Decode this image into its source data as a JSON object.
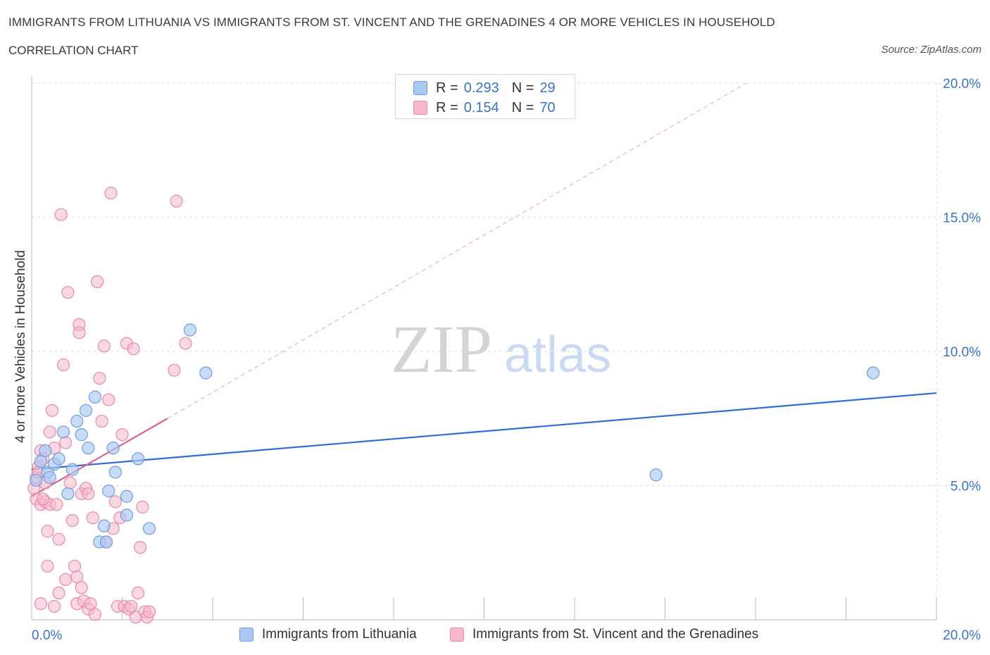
{
  "title": "IMMIGRANTS FROM LITHUANIA VS IMMIGRANTS FROM ST. VINCENT AND THE GRENADINES 4 OR MORE VEHICLES IN HOUSEHOLD",
  "subtitle": "CORRELATION CHART",
  "source": "Source: ZipAtlas.com",
  "watermark": {
    "zip": "ZIP",
    "atlas": "atlas"
  },
  "legend": {
    "r_label": "R =",
    "n_label": "N =",
    "rows": [
      {
        "r": "0.293",
        "n": "29"
      },
      {
        "r": "0.154",
        "n": "70"
      }
    ]
  },
  "colors": {
    "blue_fill": "#aac8f2",
    "blue_stroke": "#6d9ee0",
    "blue_line": "#2e6fd0",
    "pink_fill": "#f6b8cb",
    "pink_stroke": "#e98aa8",
    "pink_line": "#e0608e",
    "grid": "#dddddd",
    "axis_text": "#3a73c9"
  },
  "chart_data": {
    "type": "scatter",
    "title": "IMMIGRANTS FROM LITHUANIA VS IMMIGRANTS FROM ST. VINCENT AND THE GRENADINES 4 OR MORE VEHICLES IN HOUSEHOLD",
    "xlabel": "",
    "ylabel": "4 or more Vehicles in Household",
    "xlim": [
      0,
      20
    ],
    "ylim": [
      0,
      20
    ],
    "x_ticks": [
      "0.0%",
      "20.0%"
    ],
    "y_ticks": [
      {
        "value": 5,
        "label": "5.0%"
      },
      {
        "value": 10,
        "label": "10.0%"
      },
      {
        "value": 15,
        "label": "15.0%"
      },
      {
        "value": 20,
        "label": "20.0%"
      }
    ],
    "grid": true,
    "legend_position": "top-center",
    "series": [
      {
        "name": "Immigrants from Lithuania",
        "color": "blue",
        "points": [
          [
            0.1,
            5.2
          ],
          [
            0.2,
            5.9
          ],
          [
            0.3,
            6.3
          ],
          [
            0.35,
            5.5
          ],
          [
            0.4,
            5.3
          ],
          [
            0.5,
            5.8
          ],
          [
            0.6,
            6.0
          ],
          [
            0.7,
            7.0
          ],
          [
            0.8,
            4.7
          ],
          [
            0.9,
            5.6
          ],
          [
            1.0,
            7.4
          ],
          [
            1.1,
            6.9
          ],
          [
            1.2,
            7.8
          ],
          [
            1.25,
            6.4
          ],
          [
            1.4,
            8.3
          ],
          [
            1.5,
            2.9
          ],
          [
            1.6,
            3.5
          ],
          [
            1.65,
            2.9
          ],
          [
            1.7,
            4.8
          ],
          [
            1.8,
            6.4
          ],
          [
            1.85,
            5.5
          ],
          [
            2.1,
            4.6
          ],
          [
            2.1,
            3.9
          ],
          [
            2.35,
            6.0
          ],
          [
            2.6,
            3.4
          ],
          [
            3.5,
            10.8
          ],
          [
            3.85,
            9.2
          ],
          [
            13.8,
            5.4
          ],
          [
            18.6,
            9.2
          ]
        ],
        "trend": {
          "x0": 0.0,
          "y0": 5.6,
          "x1": 20.0,
          "y1": 8.45
        }
      },
      {
        "name": "Immigrants from St. Vincent and the Grenadines",
        "color": "pink",
        "points": [
          [
            0.05,
            4.9
          ],
          [
            0.1,
            5.3
          ],
          [
            0.1,
            4.5
          ],
          [
            0.15,
            5.7
          ],
          [
            0.2,
            6.3
          ],
          [
            0.2,
            4.3
          ],
          [
            0.2,
            0.6
          ],
          [
            0.25,
            6.0
          ],
          [
            0.3,
            5.1
          ],
          [
            0.3,
            4.4
          ],
          [
            0.35,
            2.0
          ],
          [
            0.35,
            3.3
          ],
          [
            0.4,
            7.0
          ],
          [
            0.4,
            4.3
          ],
          [
            0.45,
            7.8
          ],
          [
            0.5,
            6.4
          ],
          [
            0.5,
            0.5
          ],
          [
            0.55,
            4.3
          ],
          [
            0.6,
            3.0
          ],
          [
            0.6,
            1.0
          ],
          [
            0.65,
            15.1
          ],
          [
            0.7,
            9.5
          ],
          [
            0.75,
            6.6
          ],
          [
            0.75,
            1.5
          ],
          [
            0.8,
            12.2
          ],
          [
            0.85,
            5.1
          ],
          [
            0.9,
            3.7
          ],
          [
            0.95,
            2.0
          ],
          [
            1.0,
            1.6
          ],
          [
            1.0,
            0.6
          ],
          [
            1.05,
            11.0
          ],
          [
            1.05,
            10.7
          ],
          [
            1.1,
            4.7
          ],
          [
            1.1,
            1.2
          ],
          [
            1.15,
            0.7
          ],
          [
            1.2,
            4.9
          ],
          [
            1.25,
            4.7
          ],
          [
            1.25,
            0.4
          ],
          [
            1.3,
            0.6
          ],
          [
            1.35,
            3.8
          ],
          [
            1.4,
            0.2
          ],
          [
            1.45,
            12.6
          ],
          [
            1.5,
            9.0
          ],
          [
            1.55,
            7.4
          ],
          [
            1.6,
            10.2
          ],
          [
            1.65,
            2.9
          ],
          [
            1.7,
            8.2
          ],
          [
            1.75,
            15.9
          ],
          [
            1.8,
            3.4
          ],
          [
            1.85,
            4.4
          ],
          [
            1.9,
            0.5
          ],
          [
            1.95,
            3.8
          ],
          [
            2.0,
            6.9
          ],
          [
            2.05,
            0.5
          ],
          [
            2.1,
            10.3
          ],
          [
            2.15,
            0.4
          ],
          [
            2.2,
            0.5
          ],
          [
            2.25,
            10.1
          ],
          [
            2.3,
            0.1
          ],
          [
            2.35,
            1.0
          ],
          [
            2.4,
            2.7
          ],
          [
            2.45,
            4.2
          ],
          [
            2.5,
            0.3
          ],
          [
            2.55,
            0.1
          ],
          [
            2.6,
            0.3
          ],
          [
            3.15,
            9.3
          ],
          [
            3.2,
            15.6
          ],
          [
            3.4,
            10.3
          ],
          [
            0.15,
            5.5
          ],
          [
            0.25,
            4.5
          ]
        ],
        "trend_solid": {
          "x0": 0.0,
          "y0": 4.6,
          "x1": 3.0,
          "y1": 7.5
        },
        "trend_dashed": {
          "x0": 3.0,
          "y0": 7.5,
          "x1": 15.8,
          "y1": 20.0
        }
      }
    ]
  },
  "bottom_legend": [
    {
      "label": "Immigrants from Lithuania"
    },
    {
      "label": "Immigrants from St. Vincent and the Grenadines"
    }
  ]
}
